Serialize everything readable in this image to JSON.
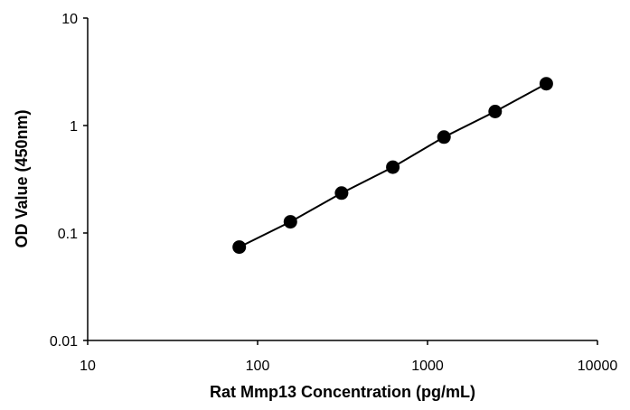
{
  "chart_data": {
    "type": "scatter",
    "title": "",
    "xlabel": "Rat Mmp13 Concentration  (pg/mL)",
    "ylabel": "OD Value (450nm)",
    "x_scale": "log",
    "y_scale": "log",
    "xlim": [
      10,
      10000
    ],
    "ylim": [
      0.01,
      10
    ],
    "x_ticks": [
      10,
      100,
      1000,
      10000
    ],
    "y_ticks": [
      0.01,
      0.1,
      1,
      10
    ],
    "x_tick_labels": [
      "10",
      "100",
      "1000",
      "10000"
    ],
    "y_tick_labels": [
      "0.01",
      "0.1",
      "1",
      "10"
    ],
    "grid": false,
    "legend": "none",
    "series": [
      {
        "x": [
          78,
          156,
          312,
          625,
          1250,
          2500,
          5000
        ],
        "y": [
          0.074,
          0.127,
          0.235,
          0.41,
          0.78,
          1.35,
          2.45
        ],
        "connected": true,
        "color": "#000000"
      }
    ]
  }
}
